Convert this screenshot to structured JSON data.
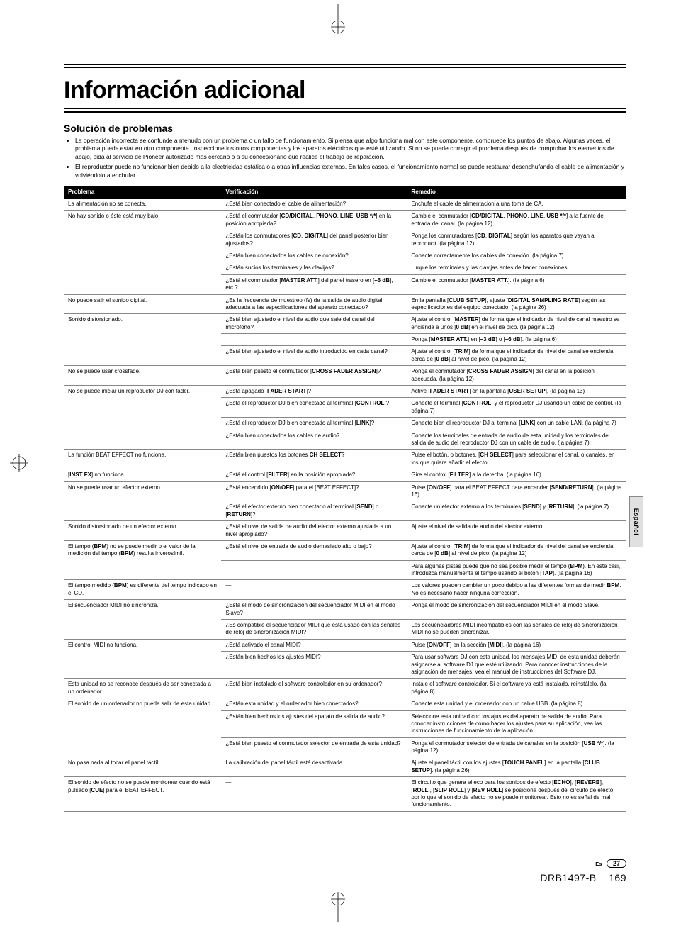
{
  "title": "Información adicional",
  "section": "Solución de problemas",
  "bullets": [
    "La operación incorrecta se confunde a menudo con un problema o un fallo de funcionamiento. Si piensa que algo funciona mal con este componente, compruebe los puntos de abajo. Algunas veces, el problema puede estar en otro componente. Inspeccione los otros componentes y los aparatos eléctricos que esté utilizando. Si no se puede corregir el problema después de comprobar los elementos de abajo, pida al servicio de Pioneer autorizado más cercano o a su concesionario que realice el trabajo de reparación.",
    "El reproductor puede no funcionar bien debido a la electricidad estática o a otras influencias externas. En tales casos, el funcionamiento normal se puede restaurar desenchufando el cable de alimentación y volviéndolo a enchufar."
  ],
  "headers": [
    "Problema",
    "Verificación",
    "Remedio"
  ],
  "rows": [
    {
      "p": "La alimentación no se conecta.",
      "v": "¿Está bien conectado el cable de alimentación?",
      "r": "Enchufe el cable de alimentación a una toma de CA."
    },
    {
      "p": "No hay sonido o éste está muy bajo.",
      "v": "¿Está el conmutador [<b>CD/DIGITAL</b>, <b>PHONO</b>, <b>LINE</b>, <b>USB */*</b>] en la posición apropiada?",
      "r": "Cambie el conmutador [<b>CD/DIGITAL</b>, <b>PHONO</b>, <b>LINE</b>, <b>USB */*</b>] a la fuente de entrada del canal. (la página 12)"
    },
    {
      "p": "",
      "v": "¿Están los conmutadores [<b>CD</b>, <b>DIGITAL</b>] del panel posterior bien ajustados?",
      "r": "Ponga los conmutadores [<b>CD</b>, <b>DIGITAL</b>] según los aparatos que vayan a reproducir. (la página 12)"
    },
    {
      "p": "",
      "v": "¿Están bien conectados los cables de conexión?",
      "r": "Conecte correctamente los cables de conexión. (la página 7)"
    },
    {
      "p": "",
      "v": "¿Están sucios los terminales y las clavijas?",
      "r": "Limpie los terminales y las clavijas antes de hacer conexiones."
    },
    {
      "p": "",
      "v": "¿Está el conmutador [<b>MASTER ATT.</b>] del panel trasero en [<b>–6 dB</b>], etc.?",
      "r": "Cambie el conmutador [<b>MASTER ATT.</b>]. (la página 6)"
    },
    {
      "p": "No puede salir el sonido digital.",
      "v": "¿Es la frecuencia de muestreo (fs) de la salida de audio digital adecuada a las especificaciones del aparato conectado?",
      "r": "En la pantalla [<b>CLUB SETUP</b>], ajuste [<b>DIGITAL SAMPLING RATE</b>] según las especificaciones del equipo conectado. (la página 26)"
    },
    {
      "p": "Sonido distorsionado.",
      "v": "¿Está bien ajustado el nivel de audio que sale del canal del micrófono?",
      "r": "Ajuste el control [<b>MASTER</b>] de forma que el indicador de nivel de canal maestro se encienda a unos [<b>0 dB</b>] en el nivel de pico. (la página 12)"
    },
    {
      "p": "",
      "v": "",
      "r": "Ponga [<b>MASTER ATT.</b>] en [<b>–3 dB</b>] o [<b>–6 dB</b>]. (la página 6)"
    },
    {
      "p": "",
      "v": "¿Está bien ajustado el nivel de audio introducido en cada canal?",
      "r": "Ajuste el control [<b>TRIM</b>] de forma que el indicador de nivel del canal se encienda cerca de [<b>0 dB</b>] al nivel de pico. (la página 12)"
    },
    {
      "p": "No se puede usar crossfade.",
      "v": "¿Está bien puesto el conmutador [<b>CROSS FADER ASSIGN</b>]?",
      "r": "Ponga el conmutador [<b>CROSS FADER ASSIGN</b>] del canal en la posición adecuada. (la página 12)"
    },
    {
      "p": "No se puede iniciar un reproductor DJ con fader.",
      "v": "¿Está apagado [<b>FADER START</b>]?",
      "r": "Active [<b>FADER START</b>] en la pantalla [<b>USER SETUP</b>]. (la página 13)"
    },
    {
      "p": "",
      "v": "¿Está el reproductor DJ bien conectado al terminal [<b>CONTROL</b>]?",
      "r": "Conecte el terminal [<b>CONTROL</b>] y el reproductor DJ usando un cable de control. (la página 7)"
    },
    {
      "p": "",
      "v": "¿Está el reproductor DJ bien conectado al terminal [<b>LINK</b>]?",
      "r": "Conecte bien el reproductor DJ al terminal [<b>LINK</b>] con un cable LAN. (la página 7)"
    },
    {
      "p": "",
      "v": "¿Están bien conectados los cables de audio?",
      "r": "Conecte los terminales de entrada de audio de esta unidad y los terminales de salida de audio del reproductor DJ con un cable de audio. (la página 7)"
    },
    {
      "p": "La función BEAT EFFECT no funciona.",
      "v": "¿Están bien puestos los botones <b>CH SELECT</b>?",
      "r": "Pulse el botón, o botones, [<b>CH SELECT</b>] para seleccionar el canal, o canales, en los que quiera añadir el efecto."
    },
    {
      "p": "[<b>INST FX</b>] no funciona.",
      "v": "¿Está el control [<b>FILTER</b>] en la posición apropiada?",
      "r": "Gire el control [<b>FILTER</b>] a la derecha. (la página 16)"
    },
    {
      "p": "No se puede usar un efector externo.",
      "v": "¿Está encendido [<b>ON</b>/<b>OFF</b>] para el [BEAT EFFECT]?",
      "r": "Pulse [<b>ON</b>/<b>OFF</b>] para el BEAT EFFECT para encender [<b>SEND/RETURN</b>]. (la página 16)"
    },
    {
      "p": "",
      "v": "¿Está el efector externo bien conectado al terminal [<b>SEND</b>] o [<b>RETURN</b>]?",
      "r": "Conecte un efector externo a los terminales [<b>SEND</b>] y [<b>RETURN</b>]. (la página 7)"
    },
    {
      "p": "Sonido distorsionado de un efector externo.",
      "v": "¿Está el nivel de salida de audio del efector externo ajustada a un nivel apropiado?",
      "r": "Ajuste el nivel de salida de audio del efector externo."
    },
    {
      "p": "El tempo (<b>BPM</b>) no se puede medir o el valor de la medición del tempo (<b>BPM</b>) resulta inverosímil.",
      "v": "¿Está el nivel de entrada de audio demasiado alto o bajo?",
      "r": "Ajuste el control [<b>TRIM</b>] de forma que el indicador de nivel del canal se encienda cerca de [<b>0 dB</b>] al nivel de pico. (la página 12)"
    },
    {
      "p": "",
      "v": "",
      "r": "Para algunas pistas puede que no sea posible medir el tempo (<b>BPM</b>). En este casi, introduzca manualmente el tempo usando el botón [<b>TAP</b>]. (la página 16)"
    },
    {
      "p": "El tempo medido (<b>BPM</b>) es diferente del tempo indicado en el CD.",
      "v": "—",
      "r": "Los valores pueden cambiar un poco debido a las diferentes formas de medir <b>BPM</b>. No es necesario hacer ninguna corrección."
    },
    {
      "p": "El secuenciador MIDI no sincroniza.",
      "v": "¿Está el modo de sincronización del secuenciador MIDI en el modo Slave?",
      "r": "Ponga el modo de sincronización del secuenciador MIDI en el modo Slave."
    },
    {
      "p": "",
      "v": "¿Es compatible el secuenciador MIDI que está usado con las señales de reloj de sincronización MIDI?",
      "r": "Los secuenciadores MIDI incompatibles con las señales de reloj de sincronización MIDI no se pueden sincronizar."
    },
    {
      "p": "El control MIDI no funciona.",
      "v": "¿Está activado el canal MIDI?",
      "r": "Pulse [<b>ON</b>/<b>OFF</b>] en la sección [<b>MIDI</b>]. (la página 16)"
    },
    {
      "p": "",
      "v": "¿Están bien hechos los ajustes MIDI?",
      "r": "Para usar software DJ con esta unidad, los mensajes MIDI de esta unidad deberán asignarse al software DJ que esté utilizando. Para conocer instrucciones de la asignación de mensajes, vea el manual de instrucciones del Software DJ."
    },
    {
      "p": "Esta unidad no se reconoce después de ser conectada a un ordenador.",
      "v": "¿Está bien instalado el software controlador en su ordenador?",
      "r": "Instale el software controlador. Si el software ya está instalado, reinstálelo. (la página 8)"
    },
    {
      "p": "El sonido de un ordenador no puede salir de esta unidad.",
      "v": "¿Están esta unidad y el ordenador bien conectados?",
      "r": "Conecte esta unidad y el ordenador con un cable USB. (la página 8)"
    },
    {
      "p": "",
      "v": "¿Están bien hechos los ajustes del aparato de salida de audio?",
      "r": "Seleccione esta unidad con los ajustes del aparato de salida de audio. Para conocer instrucciones de cómo hacer los ajustes para su aplicación, vea las instrucciones de funcionamiento de la aplicación."
    },
    {
      "p": "",
      "v": "¿Está bien puesto el conmutador selector de entrada de esta unidad?",
      "r": "Ponga el conmutador selector de entrada de canales en la posición [<b>USB */*</b>]. (la página 12)"
    },
    {
      "p": "No pasa nada al tocar el panel táctil.",
      "v": "La calibración del panel táctil está desactivada.",
      "r": "Ajuste el panel táctil con los ajustes [<b>TOUCH PANEL</b>] en la pantalla [<b>CLUB SETUP</b>]. (la página 26)"
    },
    {
      "p": "El sonido de efecto no se puede monitorear cuando está pulsado [<b>CUE</b>] para el BEAT EFFECT.",
      "v": "—",
      "r": "El circuito que genera el eco para los sonidos de efecto [<b>ECHO</b>], [<b>REVERB</b>], [<b>ROLL</b>], [<b>SLIP ROLL</b>] y [<b>REV ROLL</b>] se posiciona después del circuito de efecto, por lo que el sonido de efecto no se puede monitorear. Esto no es señal de mal funcionamiento."
    }
  ],
  "side_tab": "Español",
  "footer": {
    "lang": "Es",
    "page_small": "27",
    "doc": "DRB1497-B",
    "page_big": "169"
  }
}
